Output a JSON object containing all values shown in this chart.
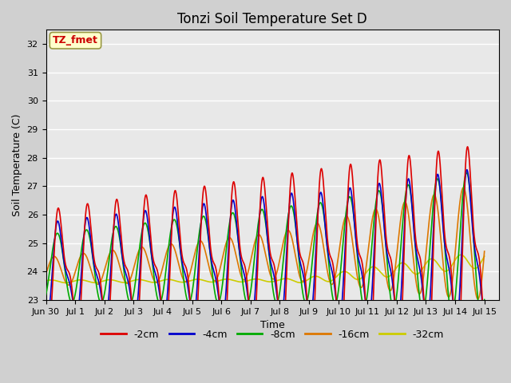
{
  "title": "Tonzi Soil Temperature Set D",
  "xlabel": "Time",
  "ylabel": "Soil Temperature (C)",
  "ylim": [
    23.0,
    32.5
  ],
  "xlim_start": 0,
  "xlim_end": 15.5,
  "annotation": "TZ_fmet",
  "annotation_color": "#cc0000",
  "annotation_bg": "#ffffcc",
  "annotation_border": "#999944",
  "fig_bg": "#d0d0d0",
  "plot_bg": "#e8e8e8",
  "series": {
    "-2cm": {
      "color": "#dd0000",
      "lw": 1.2
    },
    "-4cm": {
      "color": "#0000cc",
      "lw": 1.2
    },
    "-8cm": {
      "color": "#00aa00",
      "lw": 1.2
    },
    "-16cm": {
      "color": "#dd7700",
      "lw": 1.2
    },
    "-32cm": {
      "color": "#cccc00",
      "lw": 1.2
    }
  },
  "xtick_labels": [
    "Jun 30",
    "Jul 1",
    "Jul 2",
    "Jul 3",
    "Jul 4",
    "Jul 5",
    "Jul 6",
    "Jul 7",
    "Jul 8",
    "Jul 9",
    "Jul 10",
    "Jul 11",
    "Jul 12",
    "Jul 13",
    "Jul 14",
    "Jul 15"
  ],
  "grid_color": "#ffffff",
  "title_fontsize": 12,
  "axis_fontsize": 9,
  "tick_fontsize": 8,
  "legend_fontsize": 9
}
